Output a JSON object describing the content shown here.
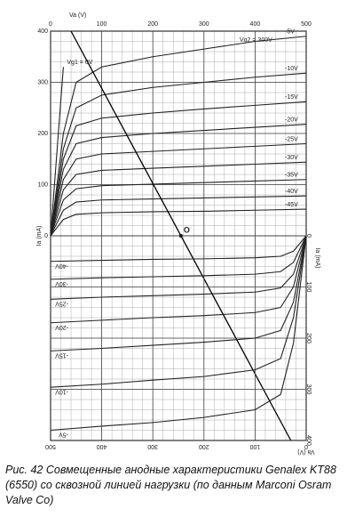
{
  "chart_data": [
    {
      "type": "line",
      "x_label": "Va (V)",
      "y_label": "Ia (mA)",
      "note": "Vg2 = 300V",
      "x": [
        0,
        25,
        50,
        100,
        200,
        300,
        400,
        500
      ],
      "xlim": [
        0,
        500
      ],
      "xticks": [
        0,
        100,
        200,
        300,
        400,
        500
      ],
      "ylim": [
        0,
        400
      ],
      "yticks": [
        0,
        100,
        200,
        300,
        400
      ],
      "color": "#222",
      "series": [
        {
          "name": "Vg1 = 0V",
          "values": [
            0,
            330,
            null,
            null,
            null,
            null,
            null,
            null
          ]
        },
        {
          "name": "-5V",
          "values": [
            0,
            200,
            300,
            330,
            350,
            365,
            380,
            390
          ]
        },
        {
          "name": "-10V",
          "values": [
            0,
            170,
            250,
            275,
            290,
            300,
            310,
            318
          ]
        },
        {
          "name": "-15V",
          "values": [
            0,
            150,
            215,
            230,
            240,
            248,
            255,
            262
          ]
        },
        {
          "name": "-20V",
          "values": [
            0,
            130,
            180,
            192,
            200,
            206,
            212,
            218
          ]
        },
        {
          "name": "-25V",
          "values": [
            0,
            110,
            150,
            160,
            165,
            170,
            175,
            180
          ]
        },
        {
          "name": "-30V",
          "values": [
            0,
            90,
            120,
            128,
            132,
            136,
            140,
            144
          ]
        },
        {
          "name": "-35V",
          "values": [
            0,
            70,
            92,
            98,
            101,
            104,
            107,
            110
          ]
        },
        {
          "name": "-40V",
          "values": [
            0,
            50,
            66,
            70,
            72,
            74,
            76,
            78
          ]
        },
        {
          "name": "-45V",
          "values": [
            0,
            32,
            42,
            45,
            47,
            48,
            50,
            52
          ]
        }
      ],
      "load_line": {
        "x": [
          40,
          470
        ],
        "y": [
          400,
          -400
        ]
      },
      "point_label": "O"
    },
    {
      "type": "line",
      "x_label": "Va (V)",
      "y_label": "Ia (mA)",
      "x": [
        0,
        25,
        50,
        100,
        200,
        300,
        400,
        500
      ],
      "xlim": [
        0,
        500
      ],
      "xticks": [
        0,
        100,
        200,
        300,
        400,
        500
      ],
      "ylim": [
        0,
        400
      ],
      "yticks": [
        0,
        100,
        200,
        300,
        400
      ],
      "color": "#222",
      "series": [
        {
          "name": "-5V",
          "values": [
            0,
            210,
            310,
            340,
            355,
            365,
            372,
            380
          ]
        },
        {
          "name": "-10V",
          "values": [
            0,
            160,
            240,
            262,
            275,
            282,
            290,
            296
          ]
        },
        {
          "name": "-15V",
          "values": [
            0,
            130,
            185,
            200,
            208,
            214,
            220,
            225
          ]
        },
        {
          "name": "-20V",
          "values": [
            0,
            100,
            140,
            150,
            156,
            160,
            165,
            170
          ]
        },
        {
          "name": "-25V",
          "values": [
            0,
            75,
            102,
            110,
            114,
            117,
            120,
            124
          ]
        },
        {
          "name": "-30V",
          "values": [
            0,
            52,
            70,
            75,
            78,
            80,
            82,
            85
          ]
        },
        {
          "name": "-40V",
          "values": [
            0,
            30,
            40,
            43,
            45,
            46,
            48,
            50
          ]
        }
      ]
    }
  ],
  "caption": "Рис. 42 Совмещенные анодные характеристики Genalex KT88 (6550) со сквозной линией нагрузки    (по данным Marconi Osram Valve Co)"
}
